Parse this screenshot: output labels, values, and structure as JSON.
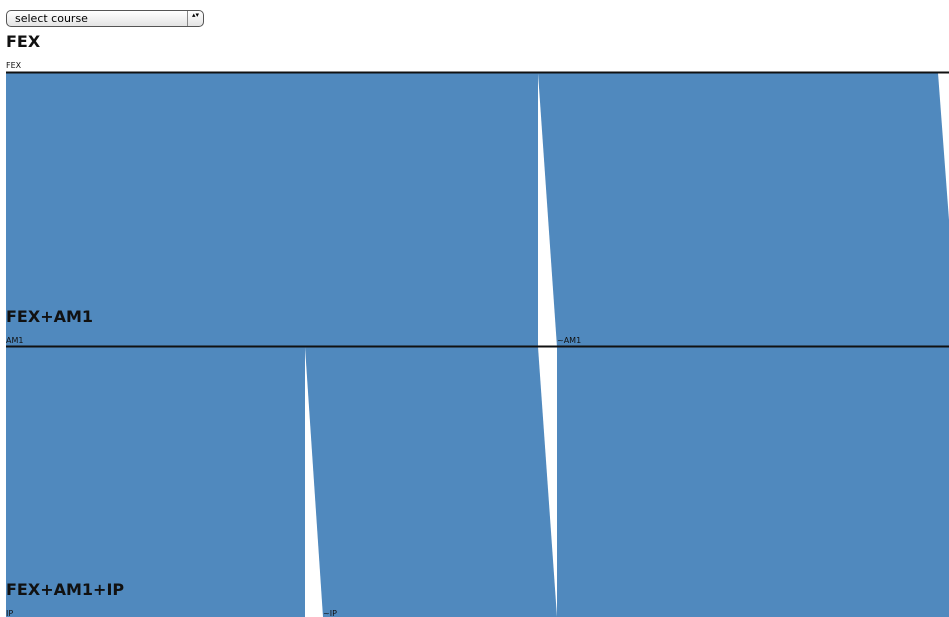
{
  "course_select": {
    "label": "select course",
    "arrows": "▴▾"
  },
  "flow_color": "#5089be",
  "rule_color": "#111111",
  "stages": [
    {
      "title": "FEX",
      "nodes": [
        {
          "label": "FEX"
        }
      ]
    },
    {
      "title": "FEX+AM1",
      "nodes": [
        {
          "label": "AM1"
        },
        {
          "label": "~AM1"
        }
      ]
    },
    {
      "title": "FEX+AM1+IP",
      "nodes": [
        {
          "label": "IP"
        },
        {
          "label": "~IP"
        }
      ]
    }
  ]
}
